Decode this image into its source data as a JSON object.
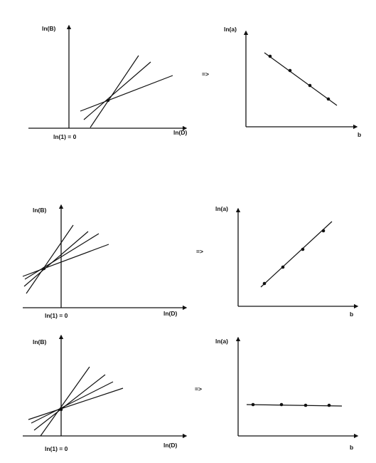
{
  "labels": {
    "ln_B": "ln(B)",
    "ln_D": "ln(D)",
    "ln_1": "ln(1) = 0",
    "ln_a": "ln(a)",
    "b": "b",
    "implies": "=>"
  },
  "panels": [
    {
      "id": "row-1"
    },
    {
      "id": "row-2"
    },
    {
      "id": "row-3"
    }
  ]
}
